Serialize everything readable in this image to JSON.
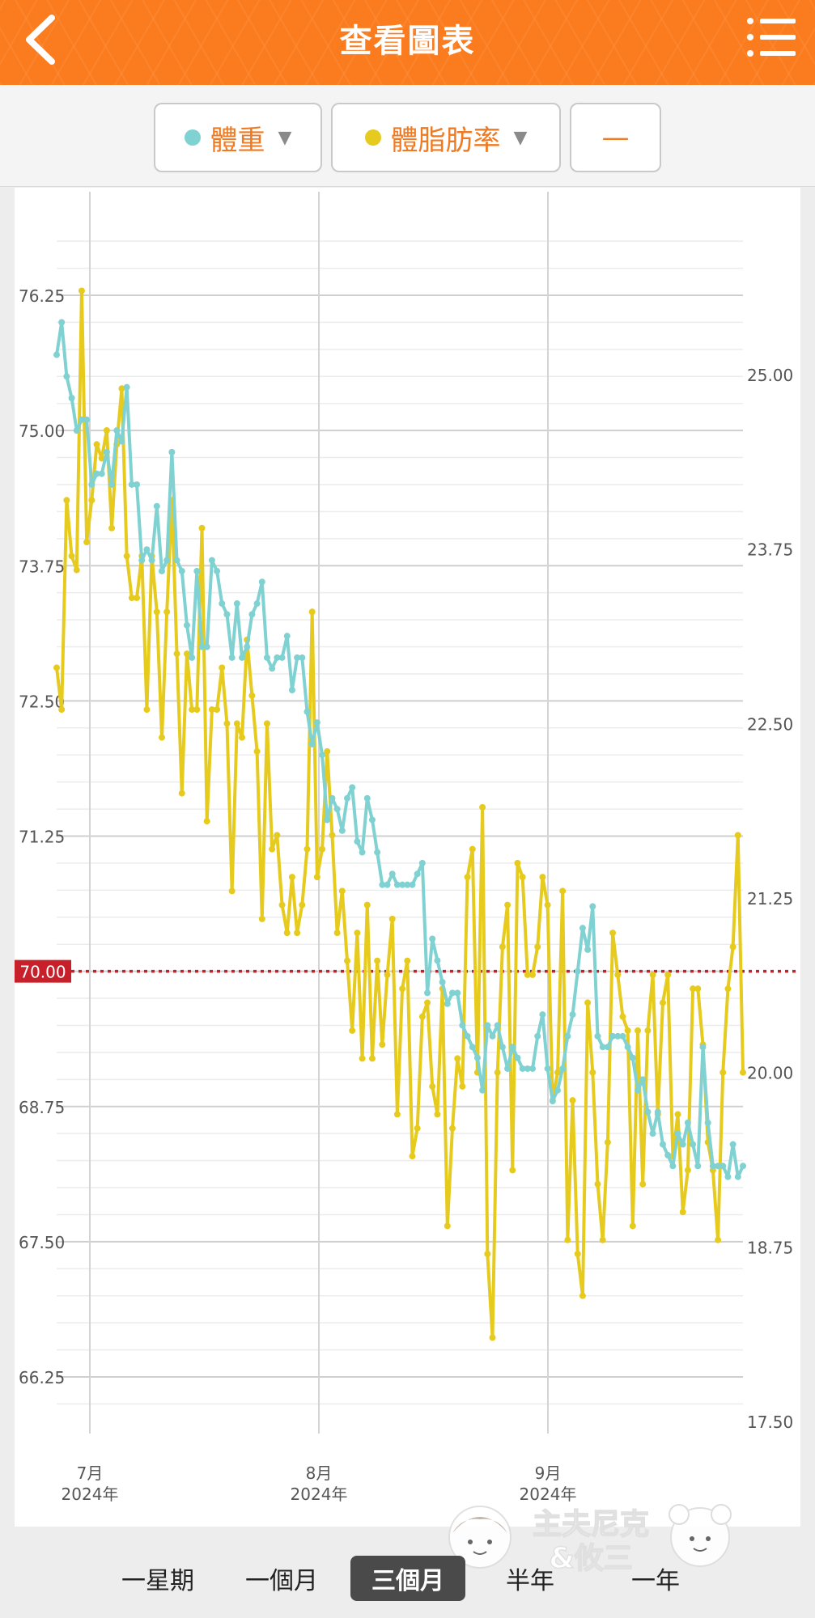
{
  "header": {
    "title": "查看圖表",
    "back_icon": "chevron-left-icon",
    "menu_icon": "list-icon"
  },
  "selectors": [
    {
      "label": "體重",
      "dot_color": "#7fd2d1"
    },
    {
      "label": "體脂肪率",
      "dot_color": "#e6cb1e"
    },
    {
      "label": "—"
    }
  ],
  "chart_data": {
    "type": "line",
    "left_axis_ticks": [
      "76.25",
      "75.00",
      "73.75",
      "72.50",
      "71.25",
      "70.00",
      "68.75",
      "67.50",
      "66.25"
    ],
    "right_axis_ticks": [
      "25.00",
      "23.75",
      "22.50",
      "21.25",
      "20.00",
      "18.75",
      "17.50"
    ],
    "x_labels": [
      {
        "month": "7月",
        "year": "2024年"
      },
      {
        "month": "8月",
        "year": "2024年"
      },
      {
        "month": "9月",
        "year": "2024年"
      }
    ],
    "target_value": "70.00",
    "target_color": "#c8202a",
    "series": [
      {
        "name": "體重",
        "color": "#7fd2d1",
        "values": [
          75.7,
          76.0,
          75.5,
          75.3,
          75.0,
          75.1,
          75.1,
          74.5,
          74.6,
          74.6,
          74.8,
          74.5,
          75.0,
          74.9,
          75.4,
          74.5,
          74.5,
          73.8,
          73.9,
          73.8,
          74.3,
          73.7,
          73.8,
          74.8,
          73.8,
          73.7,
          73.2,
          72.9,
          73.7,
          73.0,
          73.0,
          73.8,
          73.7,
          73.4,
          73.3,
          72.9,
          73.4,
          72.9,
          73.0,
          73.3,
          73.4,
          73.6,
          72.9,
          72.8,
          72.9,
          72.9,
          73.1,
          72.6,
          72.9,
          72.9,
          72.4,
          72.1,
          72.3,
          72.0,
          71.4,
          71.6,
          71.5,
          71.3,
          71.6,
          71.7,
          71.2,
          71.1,
          71.6,
          71.4,
          71.1,
          70.8,
          70.8,
          70.9,
          70.8,
          70.8,
          70.8,
          70.8,
          70.9,
          71.0,
          69.8,
          70.3,
          70.1,
          69.9,
          69.7,
          69.8,
          69.8,
          69.5,
          69.4,
          69.3,
          69.2,
          68.9,
          69.5,
          69.4,
          69.5,
          69.3,
          69.1,
          69.3,
          69.2,
          69.1,
          69.1,
          69.1,
          69.4,
          69.6,
          69.1,
          68.8,
          68.9,
          69.1,
          69.4,
          69.6,
          70.0,
          70.4,
          70.2,
          70.6,
          69.4,
          69.3,
          69.3,
          69.4,
          69.4,
          69.4,
          69.3,
          69.2,
          68.9,
          69.0,
          68.7,
          68.5,
          68.7,
          68.4,
          68.3,
          68.2,
          68.5,
          68.4,
          68.6,
          68.4,
          68.2,
          69.3,
          68.6,
          68.2,
          68.2,
          68.2,
          68.1,
          68.4,
          68.1,
          68.2
        ],
        "dates_note": ""
      },
      {
        "name": "體脂肪率",
        "color": "#e6cb1e",
        "values": [
          22.9,
          22.6,
          24.1,
          23.7,
          23.6,
          25.6,
          23.8,
          24.1,
          24.5,
          24.4,
          24.6,
          23.9,
          24.5,
          24.9,
          23.7,
          23.4,
          23.4,
          23.7,
          22.6,
          23.7,
          23.3,
          22.4,
          23.3,
          24.1,
          23.0,
          22.0,
          23.0,
          22.6,
          22.6,
          23.9,
          21.8,
          22.6,
          22.6,
          22.9,
          22.5,
          21.3,
          22.5,
          22.4,
          23.1,
          22.7,
          22.3,
          21.1,
          22.5,
          21.6,
          21.7,
          21.2,
          21.0,
          21.4,
          21.0,
          21.2,
          21.6,
          23.3,
          21.4,
          21.6,
          22.3,
          21.7,
          21.0,
          21.3,
          20.8,
          20.3,
          21.0,
          20.1,
          21.2,
          20.1,
          20.8,
          20.2,
          20.7,
          21.1,
          19.7,
          20.6,
          20.8,
          19.4,
          19.6,
          20.4,
          20.5,
          19.9,
          19.7,
          20.6,
          18.9,
          19.6,
          20.1,
          19.9,
          21.4,
          21.6,
          20.0,
          21.9,
          18.7,
          18.1,
          20.0,
          20.9,
          21.2,
          19.3,
          21.5,
          21.4,
          20.7,
          20.7,
          20.9,
          21.4,
          21.2,
          19.8,
          20.0,
          21.3,
          18.8,
          19.8,
          18.7,
          18.4,
          20.5,
          20.0,
          19.2,
          18.8,
          19.5,
          21.0,
          20.7,
          20.4,
          20.3,
          18.9,
          20.3,
          19.2,
          20.3,
          20.7,
          19.7,
          20.5,
          20.7,
          19.4,
          19.7,
          19.0,
          19.3,
          20.6,
          20.6,
          20.2,
          19.5,
          19.3,
          18.8,
          20.0,
          20.6,
          20.9,
          21.7,
          20.0
        ],
        "dates_note": ""
      }
    ]
  },
  "tabs": [
    {
      "label": "一星期",
      "active": false
    },
    {
      "label": "一個月",
      "active": false
    },
    {
      "label": "三個月",
      "active": true
    },
    {
      "label": "半年",
      "active": false
    },
    {
      "label": "一年",
      "active": false
    }
  ],
  "watermark": {
    "line1": "主夫尼克",
    "line2": "&攸三"
  }
}
